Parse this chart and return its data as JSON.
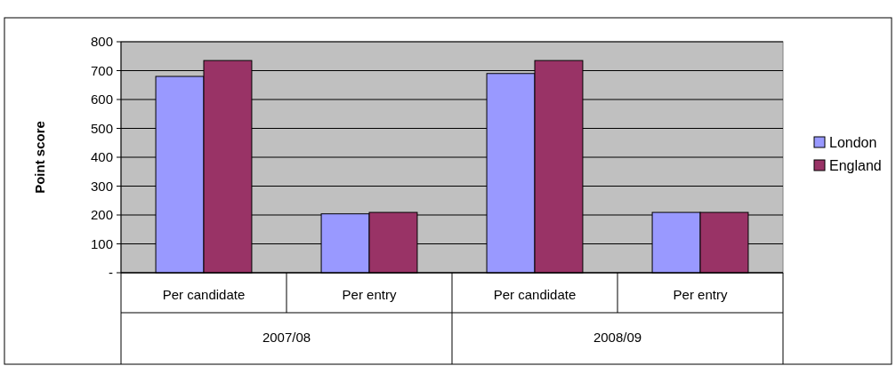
{
  "chart_data": {
    "type": "bar",
    "ylabel": "Point score",
    "categories": [
      "Per candidate",
      "Per entry",
      "Per candidate",
      "Per entry"
    ],
    "annotations": [
      "2007/08",
      "2008/09"
    ],
    "series": [
      {
        "name": "London",
        "color": "#9999ff",
        "values": [
          680,
          204,
          690,
          209
        ]
      },
      {
        "name": "England",
        "color": "#993366",
        "values": [
          735,
          209,
          735,
          209
        ]
      }
    ],
    "ylim": [
      0,
      800
    ],
    "yticks": [
      {
        "value": 0,
        "label": "-"
      },
      100,
      200,
      300,
      400,
      500,
      600,
      700,
      800
    ],
    "grid": "y",
    "legend": "right"
  }
}
